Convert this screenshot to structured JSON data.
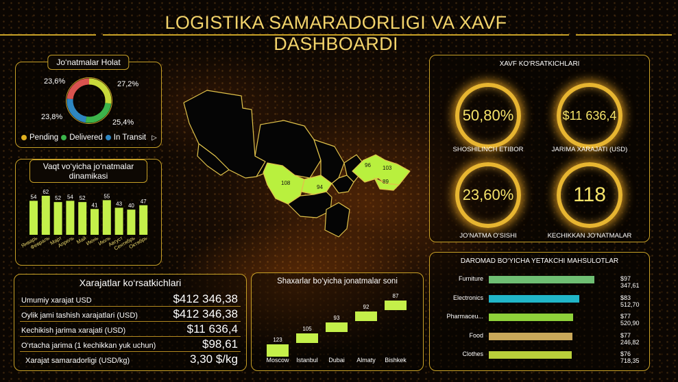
{
  "title": "LOGISTIKA SAMARADORLIGI VA XAVF DASHBOARDI",
  "status_donut": {
    "title": "Jo‘natmalar Holat",
    "slices": [
      {
        "label": "27,2%",
        "value": 27.2,
        "color": "#c8d93a"
      },
      {
        "label": "25,4%",
        "value": 25.4,
        "color": "#3cb44b"
      },
      {
        "label": "23,8%",
        "value": 23.8,
        "color": "#2e86c1"
      },
      {
        "label": "23,6%",
        "value": 23.6,
        "color": "#d9534f"
      }
    ],
    "legend": [
      {
        "label": "Pending",
        "color": "#e0b020"
      },
      {
        "label": "Delivered",
        "color": "#3cb44b"
      },
      {
        "label": "In Transit",
        "color": "#2e86c1"
      }
    ],
    "more_icon": "play-icon"
  },
  "monthly": {
    "title": "Vaqt vo‘yicha jo‘natmalar dinamikasi",
    "chart_data": {
      "type": "bar",
      "categories": [
        "Январь",
        "Февраль",
        "Март",
        "Апрель",
        "Май",
        "Июнь",
        "Июль",
        "Август",
        "Сентябрь",
        "Октябрь"
      ],
      "values": [
        54,
        62,
        52,
        54,
        52,
        41,
        55,
        43,
        40,
        47
      ],
      "color": "#c4f04a"
    }
  },
  "map": {
    "region_labels": [
      {
        "label": "108"
      },
      {
        "label": "94"
      },
      {
        "label": "96"
      },
      {
        "label": "103"
      },
      {
        "label": "89"
      }
    ]
  },
  "risk": {
    "title": "XAVF KO‘RSATKICHLARI",
    "kpis": [
      {
        "value": "50,80%",
        "label": "SHOSHILINCH ETIBOR"
      },
      {
        "value": "$11 636,4",
        "label": "JARIMA XARAJATI (USD)"
      },
      {
        "value": "23,60%",
        "label": "JO‘NATMA O‘SISHI"
      },
      {
        "value": "118",
        "label": "KECHIKKAN JO‘NATMALAR"
      }
    ]
  },
  "expenses": {
    "title": "Xarajatlar ko‘rsatkichlari",
    "rows": [
      {
        "label": "Umumiy xarajat USD",
        "value": "$412 346,38"
      },
      {
        "label": "Oylik jami tashish xarajatlari (USD)",
        "value": "$412 346,38"
      },
      {
        "label": "Kechikish jarima xarajati (USD)",
        "value": "$11 636,4"
      },
      {
        "label": "O‘rtacha jarima (1 kechikkan yuk uchun)",
        "value": "$98,61"
      },
      {
        "label": "Xarajat samaradorligi (USD/kg)",
        "value": "3,30 $/kg"
      }
    ]
  },
  "cities": {
    "title": "Shaxarlar bo‘yicha jonatmalar soni",
    "chart_data": {
      "type": "waterfall",
      "categories": [
        "Moscow",
        "Istanbul",
        "Dubai",
        "Almaty",
        "Bishkek"
      ],
      "values": [
        123,
        105,
        93,
        92,
        87
      ],
      "color": "#c4f04a"
    }
  },
  "products": {
    "title": "DAROMAD BO‘YICHA YETAKCHI MAHSULOTLAR",
    "chart_data": {
      "type": "bar",
      "categories": [
        "Furniture",
        "Electronics",
        "Pharmaceu...",
        "Food",
        "Clothes"
      ],
      "values": [
        97347.61,
        83512.7,
        77520.9,
        77246.82,
        76718.35
      ],
      "labels": [
        "$97 347,61",
        "$83 512,70",
        "$77 520,90",
        "$77 246,82",
        "$76 718,35"
      ],
      "colors": [
        "#6fbf73",
        "#21b6c8",
        "#8fd13a",
        "#c9a85a",
        "#b9cf3a"
      ]
    }
  }
}
